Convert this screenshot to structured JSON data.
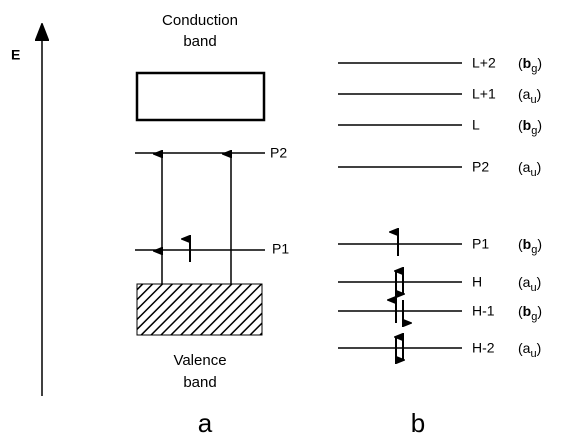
{
  "axis": {
    "label": "E"
  },
  "panel_a": {
    "label": "a",
    "conduction_band": [
      "Conduction",
      "band"
    ],
    "valence_band": [
      "Valence",
      "band"
    ],
    "levels": [
      {
        "label": "P2"
      },
      {
        "label": "P1"
      }
    ]
  },
  "panel_b": {
    "label": "b",
    "levels": [
      {
        "label": "L+2",
        "symmetry": {
          "letter": "b",
          "sub": "g"
        }
      },
      {
        "label": "L+1",
        "symmetry": {
          "letter": "a",
          "sub": "u"
        }
      },
      {
        "label": "L",
        "symmetry": {
          "letter": "b",
          "sub": "g"
        }
      },
      {
        "label": "P2",
        "symmetry": {
          "letter": "a",
          "sub": "u"
        }
      },
      {
        "label": "P1",
        "symmetry": {
          "letter": "b",
          "sub": "g"
        }
      },
      {
        "label": "H",
        "symmetry": {
          "letter": "a",
          "sub": "u"
        }
      },
      {
        "label": "H-1",
        "symmetry": {
          "letter": "b",
          "sub": "g"
        }
      },
      {
        "label": "H-2",
        "symmetry": {
          "letter": "a",
          "sub": "u"
        }
      }
    ]
  }
}
